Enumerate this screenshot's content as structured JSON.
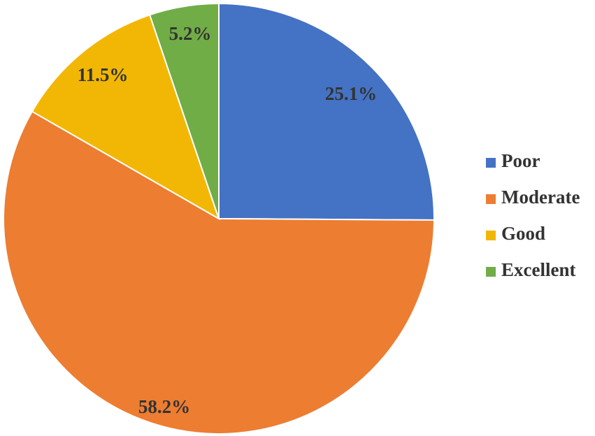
{
  "chart_data": {
    "type": "pie",
    "title": "",
    "start_angle_deg": 0,
    "direction": "clockwise",
    "legend_position": "right",
    "slices": [
      {
        "label": "Poor",
        "value": 25.1,
        "value_label": "25.1%",
        "color": "#4472C4"
      },
      {
        "label": "Moderate",
        "value": 58.2,
        "value_label": "58.2%",
        "color": "#ED7D31"
      },
      {
        "label": "Good",
        "value": 11.5,
        "value_label": "11.5%",
        "color": "#F2B705"
      },
      {
        "label": "Excellent",
        "value": 5.2,
        "value_label": "5.2%",
        "color": "#70AD47"
      }
    ]
  }
}
